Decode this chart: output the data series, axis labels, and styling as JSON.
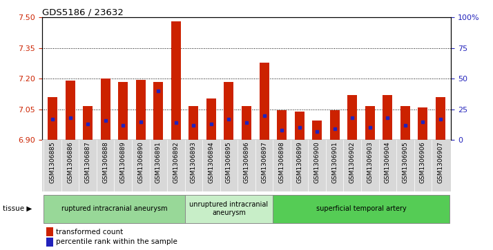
{
  "title": "GDS5186 / 23632",
  "samples": [
    "GSM1306885",
    "GSM1306886",
    "GSM1306887",
    "GSM1306888",
    "GSM1306889",
    "GSM1306890",
    "GSM1306891",
    "GSM1306892",
    "GSM1306893",
    "GSM1306894",
    "GSM1306895",
    "GSM1306896",
    "GSM1306897",
    "GSM1306898",
    "GSM1306899",
    "GSM1306900",
    "GSM1306901",
    "GSM1306902",
    "GSM1306903",
    "GSM1306904",
    "GSM1306905",
    "GSM1306906",
    "GSM1306907"
  ],
  "transformed_count": [
    7.11,
    7.19,
    7.065,
    7.2,
    7.185,
    7.195,
    7.185,
    7.48,
    7.065,
    7.105,
    7.185,
    7.065,
    7.28,
    7.045,
    7.04,
    6.995,
    7.045,
    7.12,
    7.065,
    7.12,
    7.065,
    7.06,
    7.11
  ],
  "percentile_rank": [
    17,
    18,
    13,
    16,
    12,
    15,
    40,
    14,
    12,
    13,
    17,
    14,
    20,
    8,
    10,
    7,
    9,
    18,
    10,
    18,
    12,
    15,
    17
  ],
  "groups": [
    {
      "label": "ruptured intracranial aneurysm",
      "start": 0,
      "end": 7,
      "color": "#98d898"
    },
    {
      "label": "unruptured intracranial\naneurysm",
      "start": 8,
      "end": 12,
      "color": "#c8eec8"
    },
    {
      "label": "superficial temporal artery",
      "start": 13,
      "end": 22,
      "color": "#55cc55"
    }
  ],
  "ylim_left": [
    6.9,
    7.5
  ],
  "ylim_right": [
    0,
    100
  ],
  "yticks_left": [
    6.9,
    7.05,
    7.2,
    7.35,
    7.5
  ],
  "yticks_right": [
    0,
    25,
    50,
    75,
    100
  ],
  "ytick_labels_right": [
    "0",
    "25",
    "50",
    "75",
    "100%"
  ],
  "bar_color": "#cc2200",
  "blue_color": "#2222bb",
  "bar_width": 0.55,
  "baseline": 6.9,
  "legend_labels": [
    "transformed count",
    "percentile rank within the sample"
  ],
  "tissue_label": "tissue"
}
